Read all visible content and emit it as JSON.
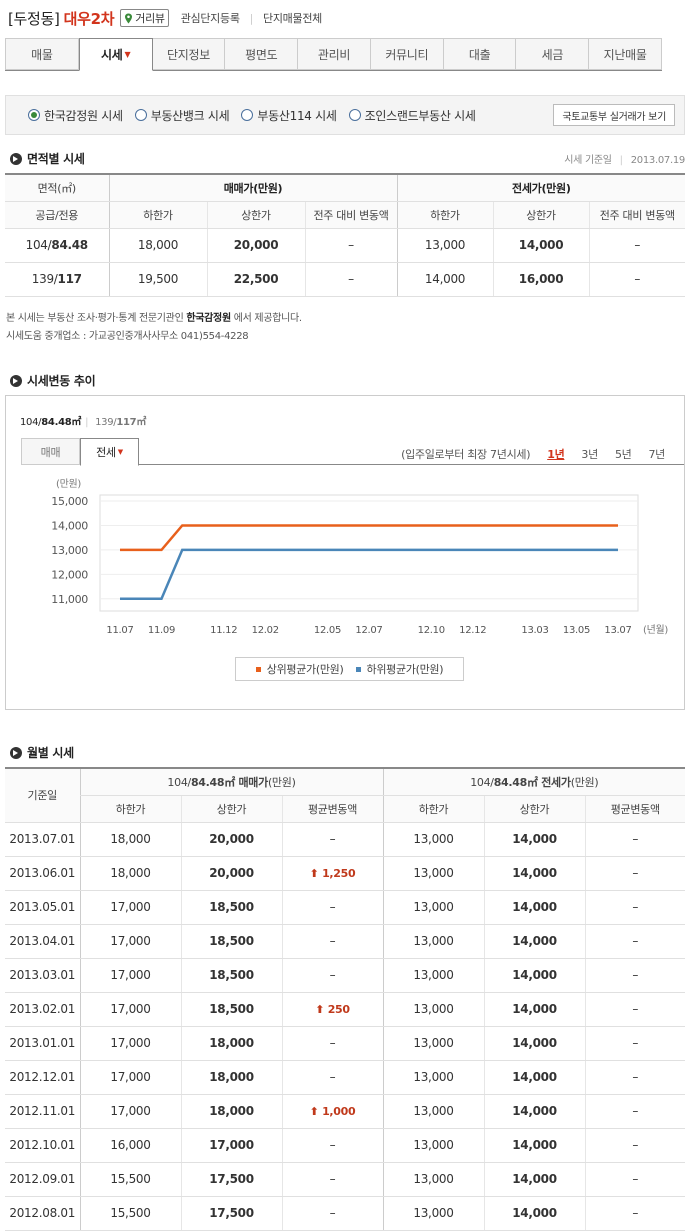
{
  "header": {
    "dong": "[두정동]",
    "apt": "대우2차",
    "review": "거리뷰",
    "fav": "관심단지등록",
    "sale_all": "단지매물전체"
  },
  "tabs": [
    "매물",
    "시세",
    "단지정보",
    "평면도",
    "관리비",
    "커뮤니티",
    "대출",
    "세금",
    "지난매물"
  ],
  "sources": [
    "한국감정원 시세",
    "부동산뱅크 시세",
    "부동산114 시세",
    "조인스랜드부동산 시세"
  ],
  "gov_button": "국토교통부 실거래가 보기",
  "area_section": {
    "title": "면적별 시세",
    "date_label": "시세 기준일",
    "date": "2013.07.19",
    "h_area": "면적(㎡)",
    "h_supply": "공급/전용",
    "h_sale": "매매가(만원)",
    "h_rent": "전세가(만원)",
    "h_low": "하한가",
    "h_high": "상한가",
    "h_change": "전주 대비 변동액",
    "rows": [
      {
        "area_a": "104/",
        "area_b": "84.48",
        "s_low": "18,000",
        "s_high": "20,000",
        "s_chg": "–",
        "r_low": "13,000",
        "r_high": "14,000",
        "r_chg": "–"
      },
      {
        "area_a": "139/",
        "area_b": "117",
        "s_low": "19,500",
        "s_high": "22,500",
        "s_chg": "–",
        "r_low": "14,000",
        "r_high": "16,000",
        "r_chg": "–"
      }
    ]
  },
  "notes": {
    "l1a": "본 시세는 부동산 조사·평가·통계 전문기관인 ",
    "l1b": "한국감정원",
    "l1c": " 에서 제공합니다.",
    "l2": "시세도움 중개업소 : 가교공인중개사사무소 041)554-4228"
  },
  "trend": {
    "title": "시세변동 추이",
    "pyeong_sel_a": "104/",
    "pyeong_sel_b": "84.48㎡",
    "pyeong_other_a": "139/",
    "pyeong_other_b": "117㎡",
    "tabs": [
      "매매",
      "전세"
    ],
    "range_note": "(입주일로부터 최장 7년시세)",
    "ranges": [
      "1년",
      "3년",
      "5년",
      "7년"
    ],
    "legend_high": "상위평균가(만원)",
    "legend_low": "하위평균가(만원)"
  },
  "chart_data": {
    "type": "line",
    "title": "",
    "ylabel": "(만원)",
    "xlabel": "(년월)",
    "ylim": [
      10500,
      15000
    ],
    "yticks": [
      "15,000",
      "14,000",
      "13,000",
      "12,000",
      "11,000"
    ],
    "x": [
      "11.07",
      "11.09",
      "11.12",
      "12.02",
      "12.05",
      "12.07",
      "12.10",
      "12.12",
      "13.03",
      "13.05",
      "13.07"
    ],
    "series": [
      {
        "name": "상위평균가(만원)",
        "color": "#e8601c",
        "points": [
          [
            "11.07",
            13000
          ],
          [
            "11.09",
            13000
          ],
          [
            "11.10",
            14000
          ],
          [
            "13.07",
            14000
          ]
        ]
      },
      {
        "name": "하위평균가(만원)",
        "color": "#4a86b8",
        "points": [
          [
            "11.07",
            11000
          ],
          [
            "11.09",
            11000
          ],
          [
            "11.10",
            13000
          ],
          [
            "13.07",
            13000
          ]
        ]
      }
    ]
  },
  "monthly": {
    "title": "월별 시세",
    "h_date": "기준일",
    "h_sale_a": "104/",
    "h_sale_b": "84.48㎡",
    "h_sale_c": " 매매가",
    "h_sale_d": "(만원)",
    "h_rent_a": "104/",
    "h_rent_b": "84.48㎡",
    "h_rent_c": " 전세가",
    "h_rent_d": "(만원)",
    "h_low": "하한가",
    "h_high": "상한가",
    "h_avg": "평균변동액",
    "rows": [
      {
        "d": "2013.07.01",
        "sl": "18,000",
        "sh": "20,000",
        "sc": "–",
        "rl": "13,000",
        "rh": "14,000",
        "rc": "–"
      },
      {
        "d": "2013.06.01",
        "sl": "18,000",
        "sh": "20,000",
        "sc": "1,250",
        "rl": "13,000",
        "rh": "14,000",
        "rc": "–"
      },
      {
        "d": "2013.05.01",
        "sl": "17,000",
        "sh": "18,500",
        "sc": "–",
        "rl": "13,000",
        "rh": "14,000",
        "rc": "–"
      },
      {
        "d": "2013.04.01",
        "sl": "17,000",
        "sh": "18,500",
        "sc": "–",
        "rl": "13,000",
        "rh": "14,000",
        "rc": "–"
      },
      {
        "d": "2013.03.01",
        "sl": "17,000",
        "sh": "18,500",
        "sc": "–",
        "rl": "13,000",
        "rh": "14,000",
        "rc": "–"
      },
      {
        "d": "2013.02.01",
        "sl": "17,000",
        "sh": "18,500",
        "sc": "250",
        "rl": "13,000",
        "rh": "14,000",
        "rc": "–"
      },
      {
        "d": "2013.01.01",
        "sl": "17,000",
        "sh": "18,000",
        "sc": "–",
        "rl": "13,000",
        "rh": "14,000",
        "rc": "–"
      },
      {
        "d": "2012.12.01",
        "sl": "17,000",
        "sh": "18,000",
        "sc": "–",
        "rl": "13,000",
        "rh": "14,000",
        "rc": "–"
      },
      {
        "d": "2012.11.01",
        "sl": "17,000",
        "sh": "18,000",
        "sc": "1,000",
        "rl": "13,000",
        "rh": "14,000",
        "rc": "–"
      },
      {
        "d": "2012.10.01",
        "sl": "16,000",
        "sh": "17,000",
        "sc": "–",
        "rl": "13,000",
        "rh": "14,000",
        "rc": "–"
      },
      {
        "d": "2012.09.01",
        "sl": "15,500",
        "sh": "17,500",
        "sc": "–",
        "rl": "13,000",
        "rh": "14,000",
        "rc": "–"
      },
      {
        "d": "2012.08.01",
        "sl": "15,500",
        "sh": "17,500",
        "sc": "–",
        "rl": "13,000",
        "rh": "14,000",
        "rc": "–"
      }
    ]
  }
}
